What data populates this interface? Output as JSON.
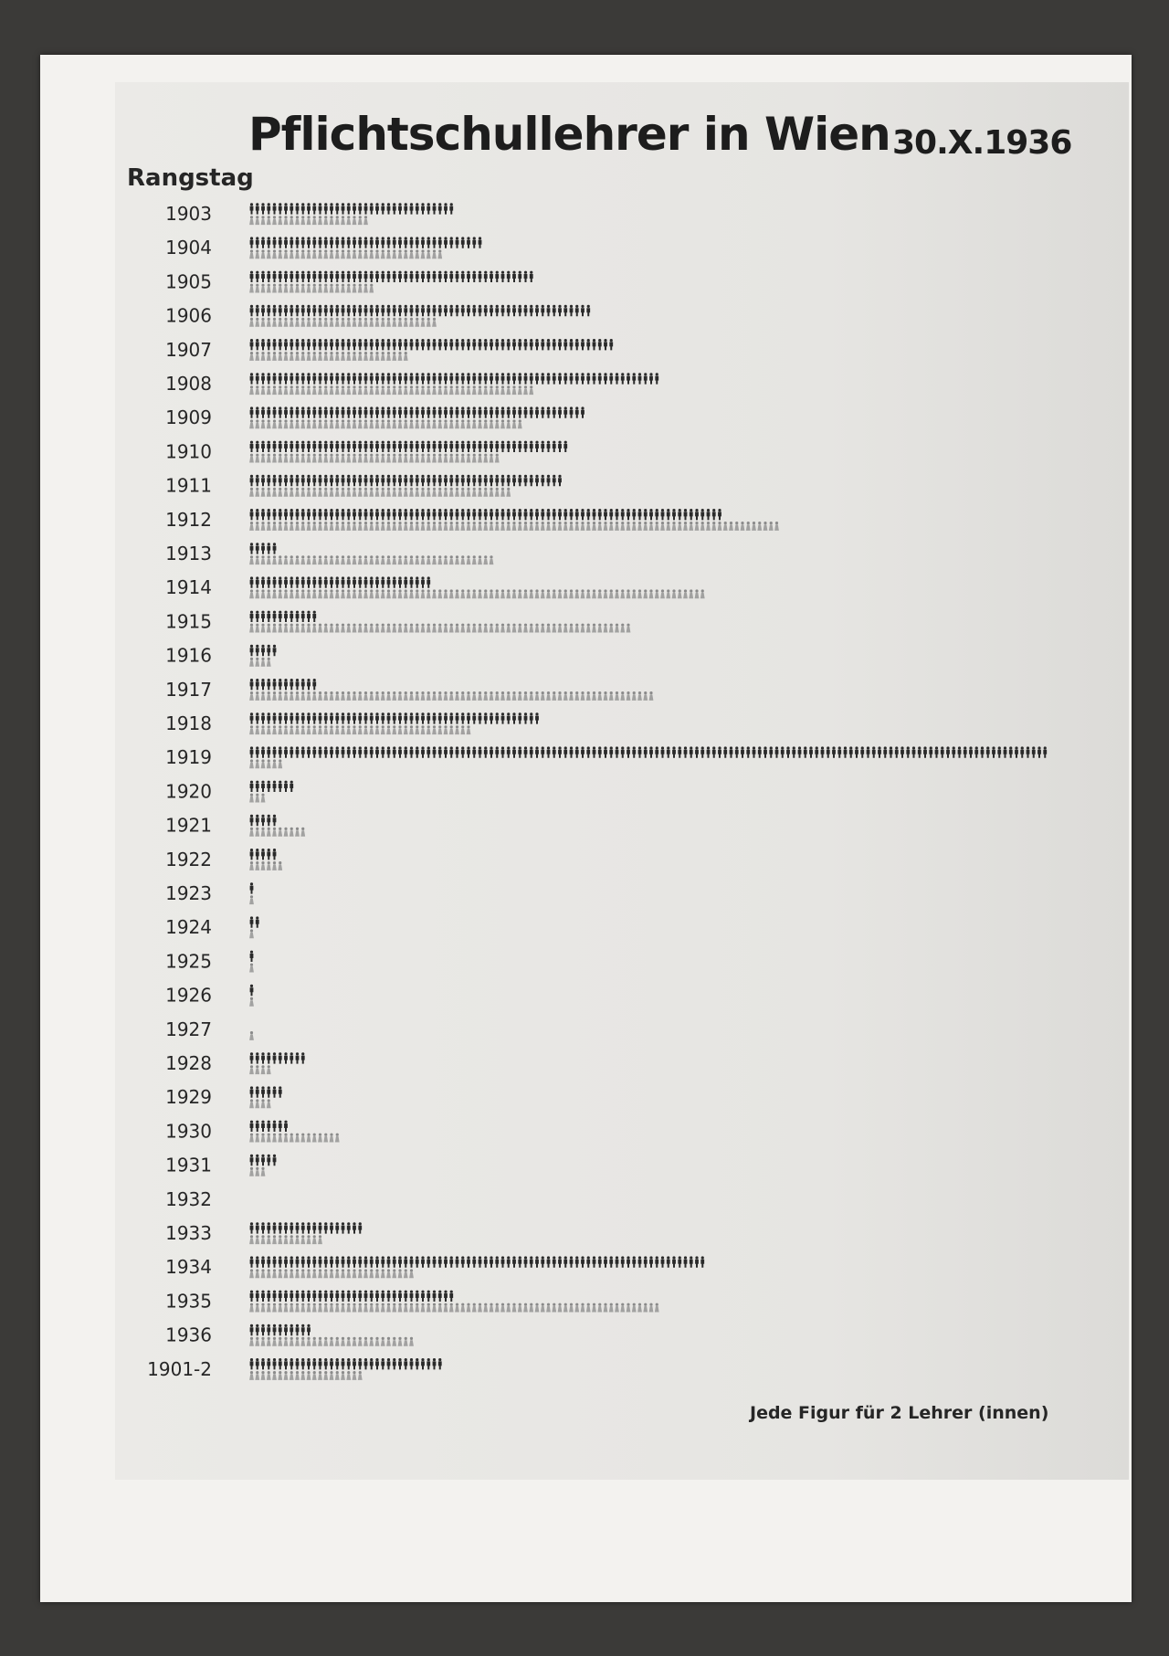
{
  "chart_data": {
    "type": "bar",
    "orientation": "horizontal",
    "style": "isotype pictogram rows (two rows per category)",
    "title": "Pflichtschullehrer in Wien",
    "date": "30.X.1936",
    "ylabel": "Rangstag",
    "note": "Jede Figur für 2 Lehrer (innen)",
    "unit_per_figure": 2,
    "categories": [
      "1903",
      "1904",
      "1905",
      "1906",
      "1907",
      "1908",
      "1909",
      "1910",
      "1911",
      "1912",
      "1913",
      "1914",
      "1915",
      "1916",
      "1917",
      "1918",
      "1919",
      "1920",
      "1921",
      "1922",
      "1923",
      "1924",
      "1925",
      "1926",
      "1927",
      "1928",
      "1929",
      "1930",
      "1931",
      "1932",
      "1933",
      "1934",
      "1935",
      "1936",
      "1901-2"
    ],
    "series": [
      {
        "figure": "male",
        "color": "#2a2a2a",
        "figures": [
          36,
          41,
          50,
          60,
          64,
          72,
          59,
          56,
          55,
          83,
          5,
          32,
          12,
          5,
          12,
          51,
          140,
          8,
          5,
          5,
          1,
          2,
          1,
          1,
          0,
          10,
          6,
          7,
          5,
          0,
          20,
          80,
          36,
          11,
          34
        ]
      },
      {
        "figure": "female",
        "color": "#8a8a8a",
        "figures": [
          21,
          34,
          22,
          33,
          28,
          50,
          48,
          44,
          46,
          93,
          43,
          80,
          67,
          4,
          71,
          39,
          6,
          3,
          10,
          6,
          1,
          1,
          1,
          1,
          1,
          4,
          4,
          16,
          3,
          0,
          13,
          29,
          72,
          29,
          20
        ]
      }
    ],
    "grid": false
  },
  "colors": {
    "background": "#3b3a38",
    "paper": "#f3f2ef"
  }
}
